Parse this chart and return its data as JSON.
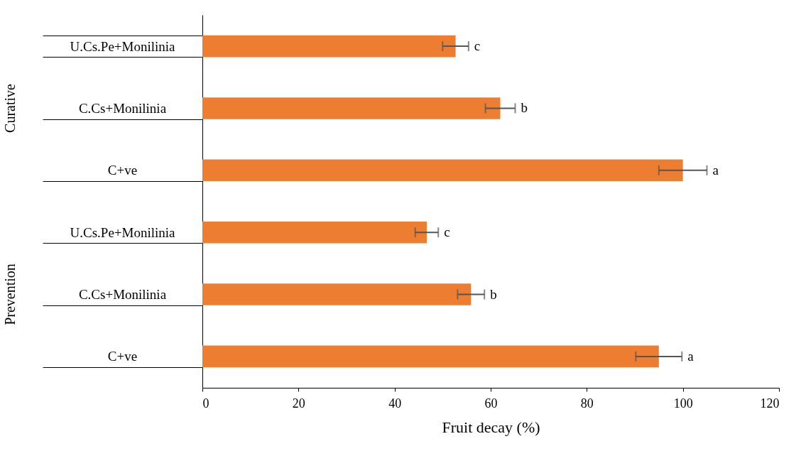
{
  "chart_data": {
    "type": "bar",
    "orientation": "horizontal",
    "xlabel": "Fruit decay (%)",
    "categories": [
      "U.Cs.Pe+Monilinia",
      "C.Cs+Monilinia",
      "C+ve",
      "U.Cs.Pe+Monilinia",
      "C.Cs+Monilinia",
      "C+ve"
    ],
    "values": [
      52.7,
      62.0,
      100,
      46.7,
      55.9,
      95.0
    ],
    "errors": [
      2.7,
      3.1,
      5.0,
      2.4,
      2.8,
      4.8
    ],
    "value_labels": [
      "c",
      "b",
      "a",
      "c",
      "b",
      "a"
    ],
    "color": "#ed7d31",
    "xlim": [
      0,
      120
    ],
    "xticks": [
      0,
      20,
      40,
      60,
      80,
      100,
      120
    ],
    "grid": false,
    "annotations": [
      "Curative",
      "Prevention"
    ]
  }
}
